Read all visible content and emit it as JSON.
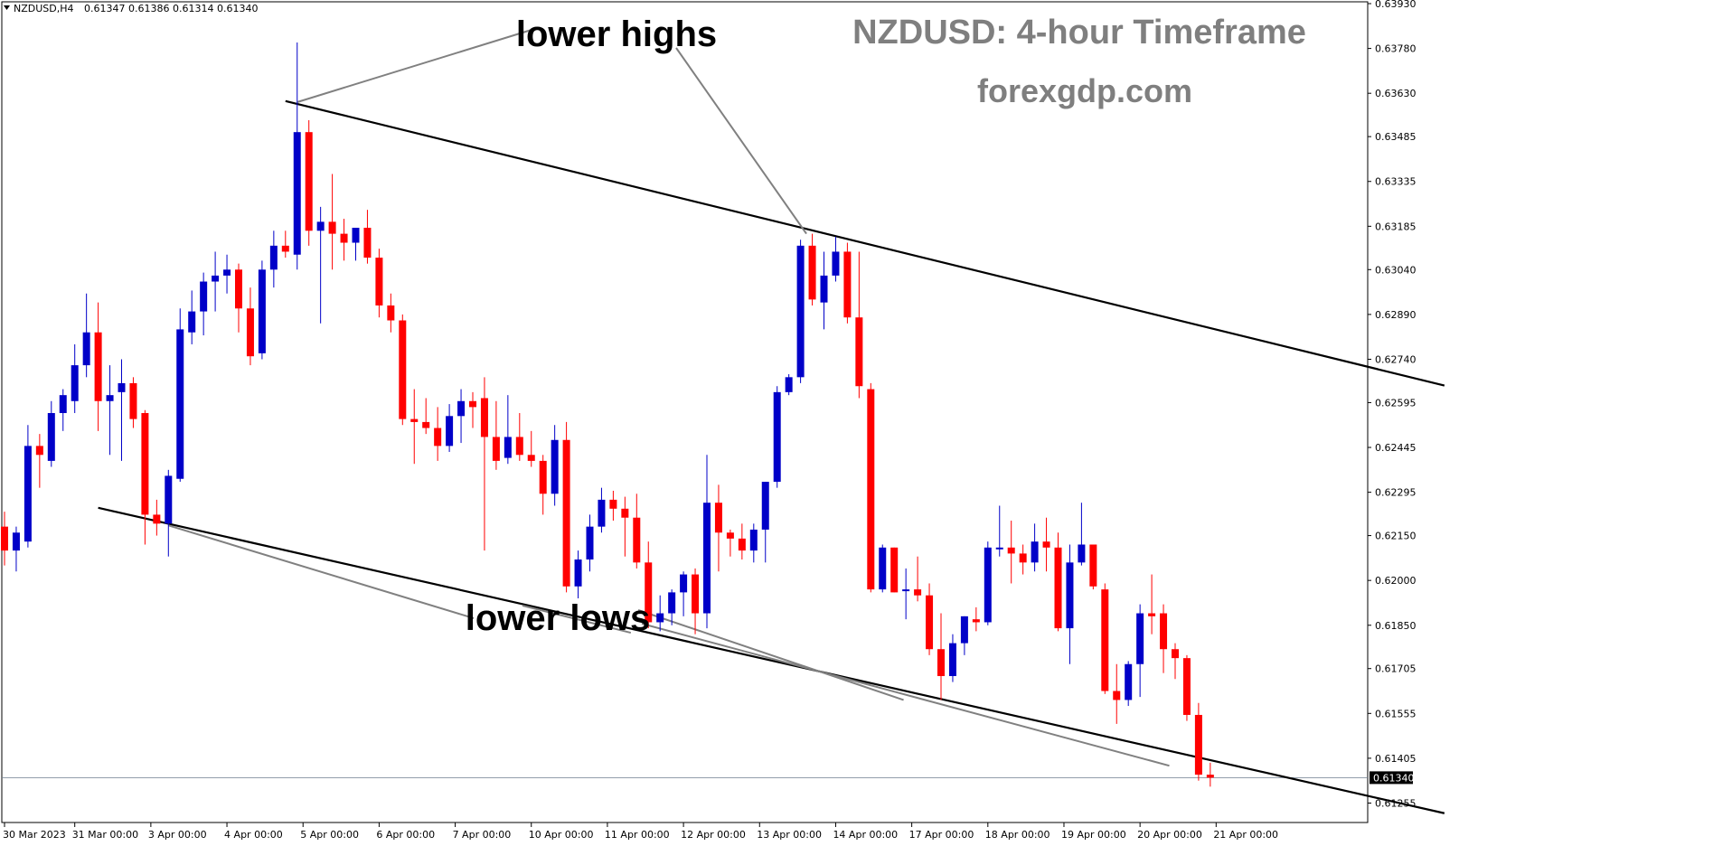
{
  "header": {
    "symbol": "NZDUSD,H4",
    "ohlc": "0.61347 0.61386 0.61314 0.61340",
    "menu_icon": "triangle-down-icon"
  },
  "title": "NZDUSD: 4-hour Timeframe",
  "website": "forexgdp.com",
  "annotations": {
    "lower_highs": "lower highs",
    "lower_lows": "lower lows"
  },
  "current_price_label": "0.61340",
  "colors": {
    "bull": "#0000c8",
    "bear": "#ff0000",
    "trendline": "#000000",
    "pointer": "#808080",
    "price_tag": "#000000",
    "axis": "#000000",
    "title": "#7f7f7f"
  },
  "chart_data": {
    "type": "candlestick",
    "symbol": "NZDUSD",
    "timeframe": "H4",
    "y_ticks": [
      "0.63930",
      "0.63780",
      "0.63630",
      "0.63485",
      "0.63335",
      "0.63185",
      "0.63040",
      "0.62890",
      "0.62740",
      "0.62595",
      "0.62445",
      "0.62295",
      "0.62150",
      "0.62000",
      "0.61850",
      "0.61705",
      "0.61555",
      "0.61405",
      "0.61255"
    ],
    "ylim": [
      0.6119,
      0.6393
    ],
    "x_ticks": [
      {
        "label": "30 Mar 2023",
        "bar": 0
      },
      {
        "label": "31 Mar 00:00",
        "bar": 6
      },
      {
        "label": "3 Apr 00:00",
        "bar": 12.5
      },
      {
        "label": "4 Apr 00:00",
        "bar": 19
      },
      {
        "label": "5 Apr 00:00",
        "bar": 25.5
      },
      {
        "label": "6 Apr 00:00",
        "bar": 32
      },
      {
        "label": "7 Apr 00:00",
        "bar": 38.5
      },
      {
        "label": "10 Apr 00:00",
        "bar": 45
      },
      {
        "label": "11 Apr 00:00",
        "bar": 51.5
      },
      {
        "label": "12 Apr 00:00",
        "bar": 58
      },
      {
        "label": "13 Apr 00:00",
        "bar": 64.5
      },
      {
        "label": "14 Apr 00:00",
        "bar": 71
      },
      {
        "label": "17 Apr 00:00",
        "bar": 77.5
      },
      {
        "label": "18 Apr 00:00",
        "bar": 84
      },
      {
        "label": "19 Apr 00:00",
        "bar": 90.5
      },
      {
        "label": "20 Apr 00:00",
        "bar": 97
      },
      {
        "label": "21 Apr 00:00",
        "bar": 103.5
      }
    ],
    "candles": [
      {
        "o": 0.6218,
        "h": 0.6223,
        "l": 0.6205,
        "c": 0.621
      },
      {
        "o": 0.621,
        "h": 0.6218,
        "l": 0.6203,
        "c": 0.6216
      },
      {
        "o": 0.6213,
        "h": 0.6252,
        "l": 0.6211,
        "c": 0.6245
      },
      {
        "o": 0.6245,
        "h": 0.6249,
        "l": 0.6231,
        "c": 0.6242
      },
      {
        "o": 0.624,
        "h": 0.626,
        "l": 0.6238,
        "c": 0.6256
      },
      {
        "o": 0.6256,
        "h": 0.6264,
        "l": 0.625,
        "c": 0.6262
      },
      {
        "o": 0.626,
        "h": 0.6279,
        "l": 0.6256,
        "c": 0.6272
      },
      {
        "o": 0.6272,
        "h": 0.6296,
        "l": 0.6268,
        "c": 0.6283
      },
      {
        "o": 0.6283,
        "h": 0.6293,
        "l": 0.625,
        "c": 0.626
      },
      {
        "o": 0.626,
        "h": 0.6272,
        "l": 0.6242,
        "c": 0.6262
      },
      {
        "o": 0.6263,
        "h": 0.6274,
        "l": 0.624,
        "c": 0.6266
      },
      {
        "o": 0.6266,
        "h": 0.6268,
        "l": 0.6251,
        "c": 0.6254
      },
      {
        "o": 0.6256,
        "h": 0.6257,
        "l": 0.6212,
        "c": 0.6222
      },
      {
        "o": 0.6222,
        "h": 0.6227,
        "l": 0.6215,
        "c": 0.6219
      },
      {
        "o": 0.6219,
        "h": 0.6237,
        "l": 0.6208,
        "c": 0.6235
      },
      {
        "o": 0.6234,
        "h": 0.6291,
        "l": 0.6233,
        "c": 0.6284
      },
      {
        "o": 0.6283,
        "h": 0.6297,
        "l": 0.6279,
        "c": 0.629
      },
      {
        "o": 0.629,
        "h": 0.6303,
        "l": 0.6282,
        "c": 0.63
      },
      {
        "o": 0.63,
        "h": 0.631,
        "l": 0.629,
        "c": 0.6302
      },
      {
        "o": 0.6302,
        "h": 0.6309,
        "l": 0.6296,
        "c": 0.6304
      },
      {
        "o": 0.6304,
        "h": 0.6306,
        "l": 0.6283,
        "c": 0.6291
      },
      {
        "o": 0.6291,
        "h": 0.6298,
        "l": 0.6272,
        "c": 0.6275
      },
      {
        "o": 0.6276,
        "h": 0.6307,
        "l": 0.6274,
        "c": 0.6304
      },
      {
        "o": 0.6304,
        "h": 0.6317,
        "l": 0.6298,
        "c": 0.6312
      },
      {
        "o": 0.6312,
        "h": 0.6317,
        "l": 0.6308,
        "c": 0.631
      },
      {
        "o": 0.6309,
        "h": 0.638,
        "l": 0.6304,
        "c": 0.635
      },
      {
        "o": 0.635,
        "h": 0.6354,
        "l": 0.6312,
        "c": 0.6317
      },
      {
        "o": 0.6317,
        "h": 0.6325,
        "l": 0.6286,
        "c": 0.632
      },
      {
        "o": 0.632,
        "h": 0.6336,
        "l": 0.6304,
        "c": 0.6316
      },
      {
        "o": 0.6316,
        "h": 0.6321,
        "l": 0.6307,
        "c": 0.6313
      },
      {
        "o": 0.6313,
        "h": 0.6318,
        "l": 0.6307,
        "c": 0.6318
      },
      {
        "o": 0.6318,
        "h": 0.6324,
        "l": 0.6306,
        "c": 0.6308
      },
      {
        "o": 0.6308,
        "h": 0.6311,
        "l": 0.6288,
        "c": 0.6292
      },
      {
        "o": 0.6292,
        "h": 0.6296,
        "l": 0.6283,
        "c": 0.6287
      },
      {
        "o": 0.6287,
        "h": 0.6289,
        "l": 0.6252,
        "c": 0.6254
      },
      {
        "o": 0.6254,
        "h": 0.6264,
        "l": 0.6239,
        "c": 0.6253
      },
      {
        "o": 0.6253,
        "h": 0.6261,
        "l": 0.6249,
        "c": 0.6251
      },
      {
        "o": 0.6251,
        "h": 0.6258,
        "l": 0.624,
        "c": 0.6245
      },
      {
        "o": 0.6245,
        "h": 0.6259,
        "l": 0.6243,
        "c": 0.6255
      },
      {
        "o": 0.6255,
        "h": 0.6264,
        "l": 0.6246,
        "c": 0.626
      },
      {
        "o": 0.626,
        "h": 0.6263,
        "l": 0.6251,
        "c": 0.6258
      },
      {
        "o": 0.6261,
        "h": 0.6268,
        "l": 0.621,
        "c": 0.6248
      },
      {
        "o": 0.6248,
        "h": 0.626,
        "l": 0.6237,
        "c": 0.624
      },
      {
        "o": 0.6241,
        "h": 0.6262,
        "l": 0.6239,
        "c": 0.6248
      },
      {
        "o": 0.6248,
        "h": 0.6256,
        "l": 0.624,
        "c": 0.6242
      },
      {
        "o": 0.6242,
        "h": 0.625,
        "l": 0.6238,
        "c": 0.624
      },
      {
        "o": 0.624,
        "h": 0.6242,
        "l": 0.6222,
        "c": 0.6229
      },
      {
        "o": 0.6229,
        "h": 0.6252,
        "l": 0.6225,
        "c": 0.6247
      },
      {
        "o": 0.6247,
        "h": 0.6253,
        "l": 0.6196,
        "c": 0.6198
      },
      {
        "o": 0.6198,
        "h": 0.621,
        "l": 0.6194,
        "c": 0.6207
      },
      {
        "o": 0.6207,
        "h": 0.6222,
        "l": 0.6203,
        "c": 0.6218
      },
      {
        "o": 0.6218,
        "h": 0.6231,
        "l": 0.6216,
        "c": 0.6227
      },
      {
        "o": 0.6227,
        "h": 0.623,
        "l": 0.622,
        "c": 0.6224
      },
      {
        "o": 0.6224,
        "h": 0.6228,
        "l": 0.6208,
        "c": 0.6221
      },
      {
        "o": 0.6221,
        "h": 0.6229,
        "l": 0.6204,
        "c": 0.6206
      },
      {
        "o": 0.6206,
        "h": 0.6213,
        "l": 0.6184,
        "c": 0.6186
      },
      {
        "o": 0.6186,
        "h": 0.6195,
        "l": 0.6183,
        "c": 0.6189
      },
      {
        "o": 0.6189,
        "h": 0.6197,
        "l": 0.6185,
        "c": 0.6196
      },
      {
        "o": 0.6196,
        "h": 0.6203,
        "l": 0.6188,
        "c": 0.6202
      },
      {
        "o": 0.6202,
        "h": 0.6204,
        "l": 0.6182,
        "c": 0.6189
      },
      {
        "o": 0.6189,
        "h": 0.6242,
        "l": 0.6184,
        "c": 0.6226
      },
      {
        "o": 0.6226,
        "h": 0.6232,
        "l": 0.6203,
        "c": 0.6216
      },
      {
        "o": 0.6216,
        "h": 0.6217,
        "l": 0.6208,
        "c": 0.6214
      },
      {
        "o": 0.6214,
        "h": 0.6219,
        "l": 0.6207,
        "c": 0.621
      },
      {
        "o": 0.621,
        "h": 0.6219,
        "l": 0.6206,
        "c": 0.6217
      },
      {
        "o": 0.6217,
        "h": 0.6233,
        "l": 0.6206,
        "c": 0.6233
      },
      {
        "o": 0.6233,
        "h": 0.6265,
        "l": 0.6231,
        "c": 0.6263
      },
      {
        "o": 0.6263,
        "h": 0.6269,
        "l": 0.6262,
        "c": 0.6268
      },
      {
        "o": 0.6268,
        "h": 0.6314,
        "l": 0.6266,
        "c": 0.6312
      },
      {
        "o": 0.6312,
        "h": 0.6316,
        "l": 0.6292,
        "c": 0.6294
      },
      {
        "o": 0.6293,
        "h": 0.631,
        "l": 0.6284,
        "c": 0.6302
      },
      {
        "o": 0.6302,
        "h": 0.6315,
        "l": 0.63,
        "c": 0.631
      },
      {
        "o": 0.631,
        "h": 0.6313,
        "l": 0.6286,
        "c": 0.6288
      },
      {
        "o": 0.6288,
        "h": 0.631,
        "l": 0.6261,
        "c": 0.6265
      },
      {
        "o": 0.6264,
        "h": 0.6266,
        "l": 0.6196,
        "c": 0.6197
      },
      {
        "o": 0.6197,
        "h": 0.6212,
        "l": 0.6196,
        "c": 0.6211
      },
      {
        "o": 0.6211,
        "h": 0.6211,
        "l": 0.6196,
        "c": 0.6196
      },
      {
        "o": 0.6197,
        "h": 0.6204,
        "l": 0.6187,
        "c": 0.6197
      },
      {
        "o": 0.6197,
        "h": 0.6208,
        "l": 0.6193,
        "c": 0.6195
      },
      {
        "o": 0.6195,
        "h": 0.6199,
        "l": 0.6175,
        "c": 0.6177
      },
      {
        "o": 0.6177,
        "h": 0.6189,
        "l": 0.616,
        "c": 0.6168
      },
      {
        "o": 0.6168,
        "h": 0.6182,
        "l": 0.6166,
        "c": 0.6179
      },
      {
        "o": 0.6179,
        "h": 0.6188,
        "l": 0.6175,
        "c": 0.6188
      },
      {
        "o": 0.6187,
        "h": 0.6191,
        "l": 0.6183,
        "c": 0.6186
      },
      {
        "o": 0.6186,
        "h": 0.6213,
        "l": 0.6185,
        "c": 0.6211
      },
      {
        "o": 0.6211,
        "h": 0.6225,
        "l": 0.6208,
        "c": 0.6211
      },
      {
        "o": 0.6211,
        "h": 0.622,
        "l": 0.6199,
        "c": 0.6209
      },
      {
        "o": 0.6209,
        "h": 0.6212,
        "l": 0.6202,
        "c": 0.6206
      },
      {
        "o": 0.6206,
        "h": 0.6219,
        "l": 0.6203,
        "c": 0.6213
      },
      {
        "o": 0.6213,
        "h": 0.6221,
        "l": 0.6203,
        "c": 0.6211
      },
      {
        "o": 0.6211,
        "h": 0.6216,
        "l": 0.6183,
        "c": 0.6184
      },
      {
        "o": 0.6184,
        "h": 0.6212,
        "l": 0.6172,
        "c": 0.6206
      },
      {
        "o": 0.6206,
        "h": 0.6226,
        "l": 0.6205,
        "c": 0.6212
      },
      {
        "o": 0.6212,
        "h": 0.6212,
        "l": 0.6197,
        "c": 0.6198
      },
      {
        "o": 0.6197,
        "h": 0.6199,
        "l": 0.6162,
        "c": 0.6163
      },
      {
        "o": 0.6163,
        "h": 0.6172,
        "l": 0.6152,
        "c": 0.616
      },
      {
        "o": 0.616,
        "h": 0.6173,
        "l": 0.6158,
        "c": 0.6172
      },
      {
        "o": 0.6172,
        "h": 0.6192,
        "l": 0.6161,
        "c": 0.6189
      },
      {
        "o": 0.6189,
        "h": 0.6202,
        "l": 0.6182,
        "c": 0.6188
      },
      {
        "o": 0.6189,
        "h": 0.6192,
        "l": 0.6169,
        "c": 0.6177
      },
      {
        "o": 0.6177,
        "h": 0.6179,
        "l": 0.6167,
        "c": 0.6174
      },
      {
        "o": 0.6174,
        "h": 0.6175,
        "l": 0.6153,
        "c": 0.6155
      },
      {
        "o": 0.6155,
        "h": 0.6159,
        "l": 0.6133,
        "c": 0.6135
      },
      {
        "o": 0.6135,
        "h": 0.6139,
        "l": 0.6131,
        "c": 0.6134
      }
    ],
    "trendlines": [
      {
        "name": "upper",
        "from": {
          "bar": 24.0,
          "price": 0.63604
        },
        "to": {
          "bar": 123.0,
          "price": 0.62652
        }
      },
      {
        "name": "lower",
        "from": {
          "bar": 8.0,
          "price": 0.62243
        },
        "to": {
          "bar": 123.0,
          "price": 0.61221
        }
      }
    ],
    "current_price": 0.6134
  }
}
